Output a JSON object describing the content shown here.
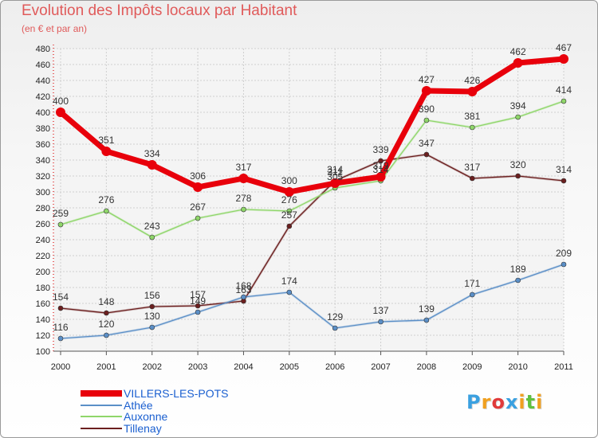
{
  "chart_data": {
    "type": "line",
    "title": "Evolution des Impôts locaux par Habitant",
    "subtitle": "(en € et par an)",
    "xlabel": "",
    "ylabel": "",
    "categories": [
      "2000",
      "2001",
      "2002",
      "2003",
      "2004",
      "2005",
      "2006",
      "2007",
      "2008",
      "2009",
      "2010",
      "2011"
    ],
    "ylim": [
      100,
      480
    ],
    "yticks": [
      100,
      120,
      140,
      160,
      180,
      200,
      220,
      240,
      260,
      280,
      300,
      320,
      340,
      360,
      380,
      400,
      420,
      440,
      460,
      480
    ],
    "grid": true,
    "legend_position": "bottom-left",
    "series": [
      {
        "name": "VILLERS-LES-POTS",
        "color": "#e8000b",
        "values": [
          400,
          351,
          334,
          306,
          317,
          300,
          311,
          319,
          427,
          426,
          462,
          467
        ]
      },
      {
        "name": "Athée",
        "color": "#5b8fc7",
        "values": [
          116,
          120,
          130,
          149,
          168,
          174,
          129,
          137,
          139,
          171,
          189,
          209
        ]
      },
      {
        "name": "Auxonne",
        "color": "#8fd66a",
        "values": [
          259,
          276,
          243,
          267,
          278,
          276,
          305,
          314,
          390,
          381,
          394,
          414
        ]
      },
      {
        "name": "Tillenay",
        "color": "#6b1f1f",
        "values": [
          154,
          148,
          156,
          157,
          163,
          257,
          314,
          339,
          347,
          317,
          320,
          314
        ]
      }
    ]
  },
  "logo": {
    "text": "Proxiti",
    "colors": [
      "#3aa0e0",
      "#f0a020",
      "#e03a3a",
      "#3aa0e0",
      "#f0a020",
      "#60c040",
      "#f0a020"
    ]
  }
}
